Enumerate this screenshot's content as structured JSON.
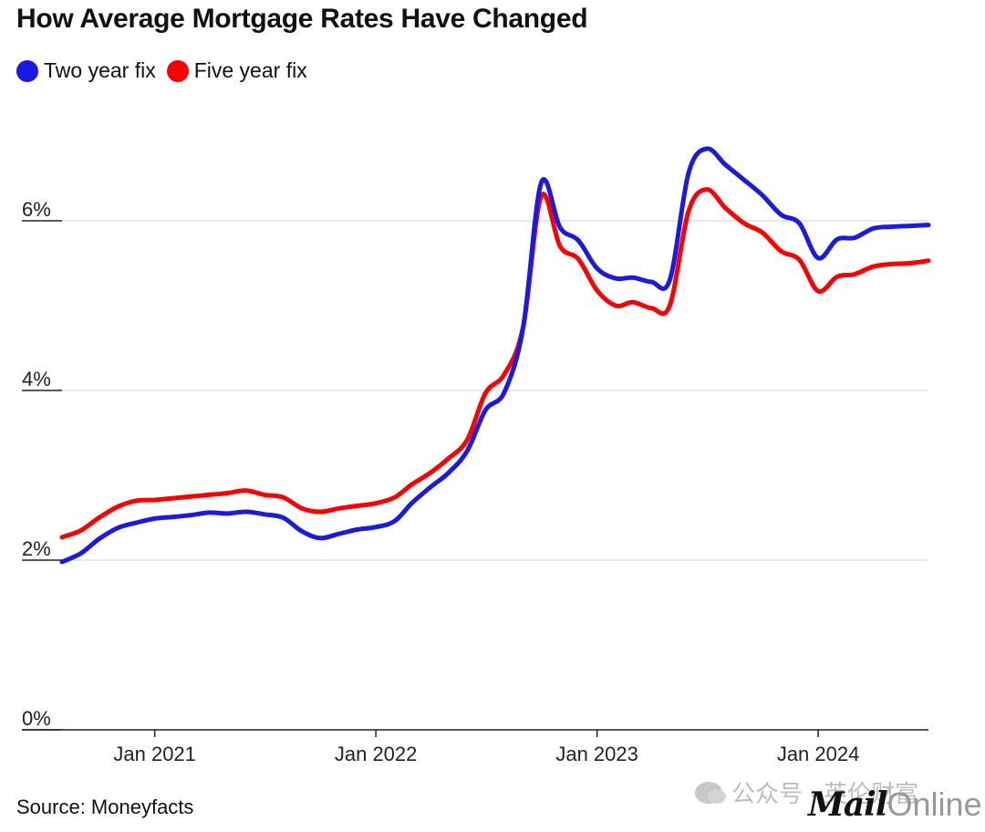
{
  "header": {
    "title": "How Average Mortgage Rates Have Changed"
  },
  "footer": {
    "source": "Source: Moneyfacts"
  },
  "watermark": {
    "text": "公众号 · 英伦财富"
  },
  "brand": {
    "mail": "Mail",
    "online": "Online"
  },
  "chart_data": {
    "type": "line",
    "title": "How Average Mortgage Rates Have Changed",
    "xlabel": "",
    "ylabel": "",
    "ylim": [
      0,
      7
    ],
    "yticks": [
      0,
      2,
      4,
      6
    ],
    "ytick_labels": [
      "0%",
      "2%",
      "4%",
      "6%"
    ],
    "xlim": [
      "2020-08-01",
      "2024-07-01"
    ],
    "xticks": [
      "2021-01-01",
      "2022-01-01",
      "2023-01-01",
      "2024-01-01"
    ],
    "xtick_labels": [
      "Jan 2021",
      "Jan 2022",
      "Jan 2023",
      "Jan 2024"
    ],
    "grid": "horizontal",
    "legend_position": "top-left",
    "series": [
      {
        "name": "Two year fix",
        "color": "#1a1ae6",
        "points": [
          [
            "2020-08-01",
            1.98
          ],
          [
            "2020-09-01",
            2.08
          ],
          [
            "2020-10-01",
            2.25
          ],
          [
            "2020-11-01",
            2.38
          ],
          [
            "2020-12-01",
            2.44
          ],
          [
            "2021-01-01",
            2.49
          ],
          [
            "2021-02-01",
            2.51
          ],
          [
            "2021-03-01",
            2.53
          ],
          [
            "2021-04-01",
            2.56
          ],
          [
            "2021-05-01",
            2.55
          ],
          [
            "2021-06-01",
            2.57
          ],
          [
            "2021-07-01",
            2.54
          ],
          [
            "2021-08-01",
            2.5
          ],
          [
            "2021-09-01",
            2.34
          ],
          [
            "2021-10-01",
            2.26
          ],
          [
            "2021-11-01",
            2.31
          ],
          [
            "2021-12-01",
            2.36
          ],
          [
            "2022-01-01",
            2.39
          ],
          [
            "2022-02-01",
            2.46
          ],
          [
            "2022-03-01",
            2.67
          ],
          [
            "2022-04-01",
            2.86
          ],
          [
            "2022-05-01",
            3.03
          ],
          [
            "2022-06-01",
            3.29
          ],
          [
            "2022-07-01",
            3.77
          ],
          [
            "2022-08-01",
            3.98
          ],
          [
            "2022-09-01",
            4.74
          ],
          [
            "2022-10-01",
            6.45
          ],
          [
            "2022-11-01",
            5.92
          ],
          [
            "2022-12-01",
            5.77
          ],
          [
            "2023-01-01",
            5.44
          ],
          [
            "2023-02-01",
            5.32
          ],
          [
            "2023-03-01",
            5.33
          ],
          [
            "2023-04-01",
            5.28
          ],
          [
            "2023-05-01",
            5.3
          ],
          [
            "2023-06-01",
            6.56
          ],
          [
            "2023-07-01",
            6.85
          ],
          [
            "2023-08-01",
            6.66
          ],
          [
            "2023-09-01",
            6.48
          ],
          [
            "2023-10-01",
            6.3
          ],
          [
            "2023-11-01",
            6.07
          ],
          [
            "2023-12-01",
            5.97
          ],
          [
            "2024-01-01",
            5.56
          ],
          [
            "2024-02-01",
            5.78
          ],
          [
            "2024-03-01",
            5.8
          ],
          [
            "2024-04-01",
            5.91
          ],
          [
            "2024-05-01",
            5.93
          ],
          [
            "2024-06-01",
            5.94
          ],
          [
            "2024-07-01",
            5.95
          ]
        ]
      },
      {
        "name": "Five year fix",
        "color": "#ff0000",
        "points": [
          [
            "2020-08-01",
            2.27
          ],
          [
            "2020-09-01",
            2.35
          ],
          [
            "2020-10-01",
            2.5
          ],
          [
            "2020-11-01",
            2.63
          ],
          [
            "2020-12-01",
            2.7
          ],
          [
            "2021-01-01",
            2.71
          ],
          [
            "2021-02-01",
            2.73
          ],
          [
            "2021-03-01",
            2.75
          ],
          [
            "2021-04-01",
            2.77
          ],
          [
            "2021-05-01",
            2.79
          ],
          [
            "2021-06-01",
            2.82
          ],
          [
            "2021-07-01",
            2.77
          ],
          [
            "2021-08-01",
            2.74
          ],
          [
            "2021-09-01",
            2.61
          ],
          [
            "2021-10-01",
            2.57
          ],
          [
            "2021-11-01",
            2.61
          ],
          [
            "2021-12-01",
            2.64
          ],
          [
            "2022-01-01",
            2.67
          ],
          [
            "2022-02-01",
            2.74
          ],
          [
            "2022-03-01",
            2.89
          ],
          [
            "2022-04-01",
            3.03
          ],
          [
            "2022-05-01",
            3.2
          ],
          [
            "2022-06-01",
            3.42
          ],
          [
            "2022-07-01",
            3.97
          ],
          [
            "2022-08-01",
            4.19
          ],
          [
            "2022-09-01",
            4.75
          ],
          [
            "2022-10-01",
            6.29
          ],
          [
            "2022-11-01",
            5.7
          ],
          [
            "2022-12-01",
            5.55
          ],
          [
            "2023-01-01",
            5.18
          ],
          [
            "2023-02-01",
            5.0
          ],
          [
            "2023-03-01",
            5.04
          ],
          [
            "2023-04-01",
            4.97
          ],
          [
            "2023-05-01",
            5.0
          ],
          [
            "2023-06-01",
            6.11
          ],
          [
            "2023-07-01",
            6.37
          ],
          [
            "2023-08-01",
            6.15
          ],
          [
            "2023-09-01",
            5.97
          ],
          [
            "2023-10-01",
            5.86
          ],
          [
            "2023-11-01",
            5.64
          ],
          [
            "2023-12-01",
            5.54
          ],
          [
            "2024-01-01",
            5.17
          ],
          [
            "2024-02-01",
            5.34
          ],
          [
            "2024-03-01",
            5.37
          ],
          [
            "2024-04-01",
            5.46
          ],
          [
            "2024-05-01",
            5.49
          ],
          [
            "2024-06-01",
            5.5
          ],
          [
            "2024-07-01",
            5.53
          ]
        ]
      }
    ]
  }
}
